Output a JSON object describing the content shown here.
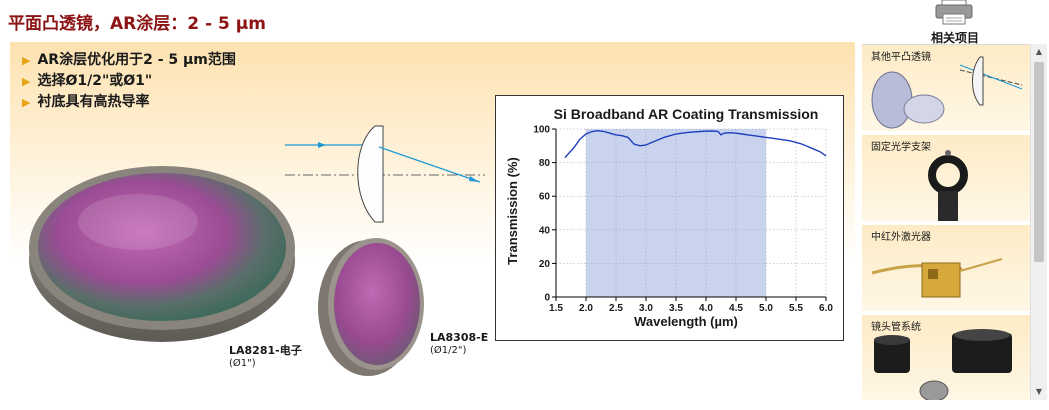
{
  "page": {
    "title": "平面凸透镜，AR涂层：2 - 5 µm"
  },
  "features": [
    "AR涂层优化用于2 - 5 µm范围",
    "选择Ø1/2\"或Ø1\"",
    "衬底具有高热导率"
  ],
  "products": [
    {
      "part": "LA8281-电子",
      "size": "(Ø1\")"
    },
    {
      "part": "LA8308-E",
      "size": "(Ø1/2\")"
    }
  ],
  "sidebar": {
    "print_icon": "printer-icon",
    "related_title": "相关项目",
    "items": [
      {
        "label": "其他平凸透镜",
        "icon": "plano-convex-lens-icon"
      },
      {
        "label": "固定光学支架",
        "icon": "fixed-optic-mount-icon"
      },
      {
        "label": "中红外激光器",
        "icon": "mid-ir-laser-icon"
      },
      {
        "label": "镜头管系统",
        "icon": "lens-tube-system-icon"
      }
    ]
  },
  "colors": {
    "title": "#8c1414",
    "bullet": "#e8a317",
    "series": "#1f3fbf",
    "shade": "#c9d3ee",
    "beam": "#1a9bd7"
  },
  "chart_data": {
    "type": "line",
    "title": "Si Broadband AR Coating Transmission",
    "xlabel": "Wavelength (µm)",
    "ylabel": "Transmission (%)",
    "xlim": [
      1.5,
      6.0
    ],
    "ylim": [
      0,
      100
    ],
    "xticks": [
      "1.5",
      "2.0",
      "2.5",
      "3.0",
      "3.5",
      "4.0",
      "4.5",
      "5.0",
      "5.5",
      "6.0"
    ],
    "yticks": [
      "0",
      "20",
      "40",
      "60",
      "80",
      "100"
    ],
    "shaded_range": [
      2.0,
      5.0
    ],
    "grid": true,
    "series": [
      {
        "x": [
          1.65,
          1.7,
          1.8,
          1.9,
          2.0,
          2.1,
          2.2,
          2.3,
          2.4,
          2.5,
          2.6,
          2.7,
          2.8,
          2.9,
          3.0,
          3.1,
          3.2,
          3.3,
          3.4,
          3.5,
          3.6,
          3.7,
          3.8,
          3.9,
          4.0,
          4.1,
          4.2,
          4.25,
          4.3,
          4.4,
          4.5,
          4.6,
          4.7,
          4.8,
          4.9,
          5.0,
          5.1,
          5.2,
          5.3,
          5.4,
          5.5,
          5.6,
          5.7,
          5.8,
          5.9,
          6.0
        ],
        "y": [
          83,
          85,
          89,
          94,
          97,
          98.5,
          99,
          98.5,
          97.5,
          96.5,
          96,
          95,
          91,
          90,
          90.5,
          92,
          93.5,
          95,
          96,
          97,
          97.5,
          98,
          98.3,
          98.5,
          98.7,
          98.8,
          98.6,
          96.5,
          97.5,
          97.8,
          97.5,
          97,
          96.5,
          96,
          95.5,
          95,
          94.5,
          94,
          93.5,
          93,
          92,
          91,
          89.5,
          88,
          86.5,
          84
        ]
      }
    ]
  }
}
